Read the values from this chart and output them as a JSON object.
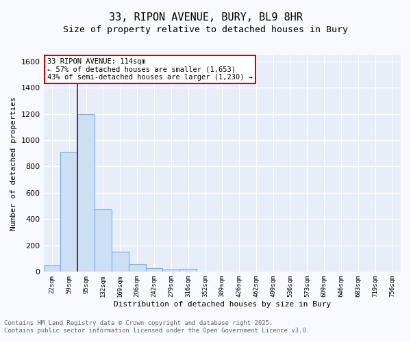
{
  "title1": "33, RIPON AVENUE, BURY, BL9 8HR",
  "title2": "Size of property relative to detached houses in Bury",
  "xlabel": "Distribution of detached houses by size in Bury",
  "ylabel": "Number of detached properties",
  "categories": [
    "22sqm",
    "59sqm",
    "95sqm",
    "132sqm",
    "169sqm",
    "206sqm",
    "242sqm",
    "279sqm",
    "316sqm",
    "352sqm",
    "389sqm",
    "426sqm",
    "462sqm",
    "499sqm",
    "536sqm",
    "573sqm",
    "609sqm",
    "646sqm",
    "683sqm",
    "719sqm",
    "756sqm"
  ],
  "values": [
    50,
    910,
    1200,
    475,
    155,
    60,
    30,
    15,
    20,
    0,
    0,
    0,
    0,
    0,
    0,
    0,
    0,
    0,
    0,
    0,
    0
  ],
  "bar_color": "#ccdff5",
  "bar_edge_color": "#7ab0d8",
  "bar_edge_width": 0.8,
  "vline_x": 1.5,
  "vline_color": "#8b0000",
  "ylim": [
    0,
    1650
  ],
  "yticks": [
    0,
    200,
    400,
    600,
    800,
    1000,
    1200,
    1400,
    1600
  ],
  "annotation_text": "33 RIPON AVENUE: 114sqm\n← 57% of detached houses are smaller (1,653)\n43% of semi-detached houses are larger (1,230) →",
  "annotation_box_color": "#ffffff",
  "annotation_box_edge": "#cc0000",
  "footer_line1": "Contains HM Land Registry data © Crown copyright and database right 2025.",
  "footer_line2": "Contains public sector information licensed under the Open Government Licence v3.0.",
  "fig_bg": "#f8f8ff",
  "ax_bg": "#e8eef8",
  "grid_color": "#ffffff",
  "title1_fontsize": 11,
  "title2_fontsize": 9.5,
  "ylabel_fontsize": 8,
  "xlabel_fontsize": 8,
  "ytick_fontsize": 8,
  "xtick_fontsize": 6.5,
  "ann_fontsize": 7.5,
  "footer_fontsize": 6.5
}
